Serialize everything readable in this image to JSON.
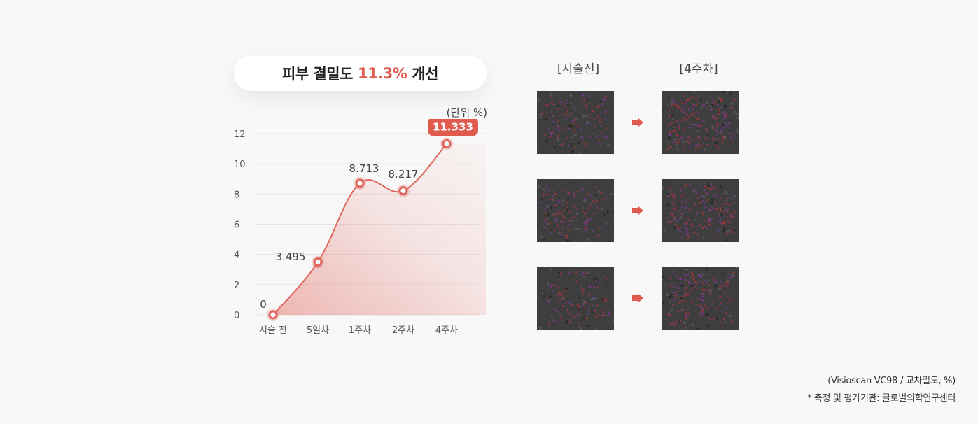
{
  "header": {
    "title_pre": "피부 결밀도",
    "title_highlight": "11.3%",
    "title_post": "개선",
    "unit": "(단위 %)"
  },
  "colors": {
    "accent": "#e05a4e",
    "line": "#e0665c",
    "grid": "#e4e4e4"
  },
  "chart_data": {
    "type": "line",
    "categories": [
      "시술 전",
      "5일차",
      "1주차",
      "2주차",
      "4주차"
    ],
    "values": [
      0,
      3.495,
      8.713,
      8.217,
      11.333
    ],
    "value_labels": [
      "0",
      "3.495",
      "8.713",
      "8.217",
      "11.333"
    ],
    "highlight_index": 4,
    "yticks": [
      0,
      2,
      4,
      6,
      8,
      10,
      12
    ],
    "ylim": [
      0,
      12
    ],
    "grid": true,
    "fill": "area-gradient"
  },
  "comparison": {
    "before_label": "[시술전]",
    "after_label": "[4주차]",
    "rows": 3
  },
  "footnotes": {
    "source": "(Visioscan VC98 / 교차밀도, %)",
    "institution": "* 측정 및 평가기관: 글로벌의학연구센터"
  }
}
